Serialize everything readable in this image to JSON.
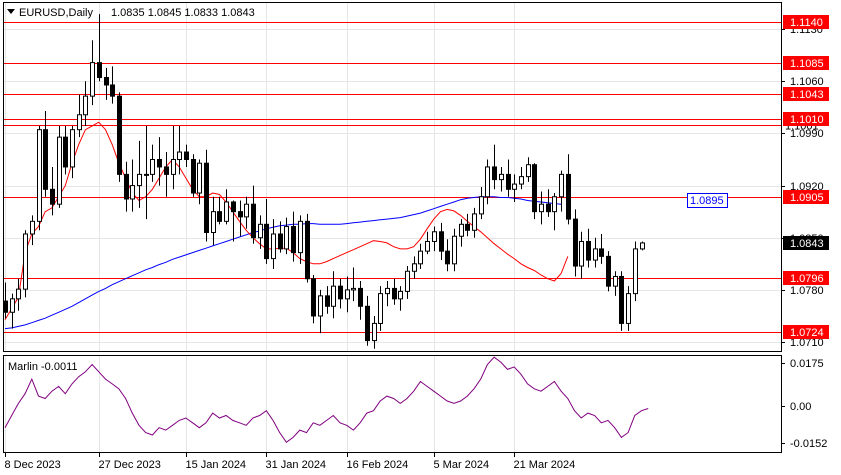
{
  "window": {
    "symbol_label": "EURUSD,Daily",
    "ohlc": "1.0835 1.0845 1.0833 1.0843",
    "current_price": "1.0843",
    "line_price_label": "1.0895"
  },
  "indicator": {
    "label": "Marlin -0.0011",
    "ticks": [
      "0.0175",
      "0.00",
      "-0.0152"
    ]
  },
  "x_axis": {
    "labels": [
      "8 Dec 2023",
      "27 Dec 2023",
      "15 Jan 2024",
      "31 Jan 2024",
      "16 Feb 2024",
      "5 Mar 2024",
      "21 Mar 2024"
    ]
  },
  "y_axis": {
    "ticks": [
      "1.1130",
      "1.1060",
      "1.0990",
      "1.0920",
      "1.0850",
      "1.0780",
      "1.0710"
    ]
  },
  "levels": [
    "1.1140",
    "1.1085",
    "1.1043",
    "1.1010",
    "1.1001",
    "1.0905",
    "1.0796",
    "1.0724"
  ],
  "colors": {
    "level_line": "#ff0000",
    "ma_fast": "#ff0000",
    "ma_slow": "#0000ff",
    "oscillator": "#800080",
    "candle_bull": "#ffffff",
    "candle_bear": "#000000"
  },
  "chart_data": [
    {
      "type": "candlestick",
      "title": "EURUSD,Daily",
      "ylim": [
        1.0698,
        1.1165
      ],
      "y_ticks": [
        1.113,
        1.106,
        1.099,
        1.092,
        1.085,
        1.078,
        1.071
      ],
      "levels": [
        1.114,
        1.1085,
        1.1043,
        1.101,
        1.1001,
        1.0905,
        1.0796,
        1.0724
      ],
      "series": [
        {
          "name": "",
          "kind": "ma_fast",
          "values": [
            1.074,
            1.0755,
            1.077,
            1.083,
            1.0855,
            1.0865,
            1.0885,
            1.089,
            1.0905,
            1.092,
            1.095,
            1.0975,
            1.0995,
            1.1,
            1.1005,
            1.0995,
            1.0975,
            1.095,
            1.093,
            1.091,
            1.09,
            1.0905,
            1.0915,
            1.093,
            1.0945,
            1.0955,
            1.0945,
            1.093,
            1.0915,
            1.0905,
            1.0905,
            1.091,
            1.0908,
            1.0898,
            1.0885,
            1.0872,
            1.086,
            1.085,
            1.0842,
            1.0835,
            1.0835,
            1.0836,
            1.0836,
            1.083,
            1.0822,
            1.0818,
            1.0815,
            1.0815,
            1.0818,
            1.0822,
            1.0826,
            1.083,
            1.0834,
            1.0838,
            1.0842,
            1.0846,
            1.0845,
            1.0843,
            1.0838,
            1.0835,
            1.0835,
            1.0838,
            1.0848,
            1.0862,
            1.0875,
            1.0885,
            1.0888,
            1.0886,
            1.088,
            1.0872,
            1.0865,
            1.0858,
            1.085,
            1.0842,
            1.0835,
            1.0828,
            1.0822,
            1.0815,
            1.081,
            1.0806,
            1.08,
            1.0795,
            1.0792,
            1.0802,
            1.0825
          ]
        },
        {
          "name": "",
          "kind": "ma_slow",
          "values": [
            1.0728,
            1.0729,
            1.0731,
            1.0733,
            1.0736,
            1.0739,
            1.0742,
            1.0746,
            1.075,
            1.0754,
            1.0758,
            1.0763,
            1.0768,
            1.0773,
            1.0778,
            1.0782,
            1.0787,
            1.0791,
            1.0795,
            1.0799,
            1.0803,
            1.0807,
            1.081,
            1.0814,
            1.0817,
            1.0821,
            1.0824,
            1.0827,
            1.083,
            1.0833,
            1.0836,
            1.0839,
            1.0842,
            1.0845,
            1.0848,
            1.0851,
            1.0854,
            1.0857,
            1.0859,
            1.0862,
            1.0864,
            1.0866,
            1.0867,
            1.0868,
            1.0868,
            1.0869,
            1.0869,
            1.0868,
            1.0868,
            1.0868,
            1.0868,
            1.0869,
            1.087,
            1.0871,
            1.0872,
            1.0873,
            1.0874,
            1.0875,
            1.0876,
            1.0877,
            1.0879,
            1.0881,
            1.0883,
            1.0886,
            1.0889,
            1.0892,
            1.0895,
            1.0898,
            1.0901,
            1.0903,
            1.0904,
            1.0905,
            1.0905,
            1.0905,
            1.0904,
            1.0904,
            1.0903,
            1.0902,
            1.09,
            1.0899,
            1.0898,
            1.0897,
            1.0896,
            1.0895
          ]
        },
        {
          "name": "",
          "kind": "ohlc",
          "candles": [
            [
              1.0765,
              1.079,
              1.0742,
              1.075
            ],
            [
              1.075,
              1.0775,
              1.0728,
              1.0768
            ],
            [
              1.0768,
              1.0795,
              1.0752,
              1.0781
            ],
            [
              1.0781,
              1.086,
              1.077,
              1.0855
            ],
            [
              1.0855,
              1.088,
              1.084,
              1.0872
            ],
            [
              1.0872,
              1.1,
              1.086,
              1.0995
            ],
            [
              1.0995,
              1.102,
              1.0905,
              1.0915
            ],
            [
              1.0915,
              1.0945,
              1.088,
              1.0895
            ],
            [
              1.0895,
              1.1,
              1.089,
              1.0985
            ],
            [
              1.0985,
              1.1,
              1.0935,
              1.0945
            ],
            [
              1.0945,
              1.1,
              1.093,
              1.0995
            ],
            [
              1.0995,
              1.1042,
              1.0985,
              1.1015
            ],
            [
              1.1015,
              1.106,
              1.1,
              1.104
            ],
            [
              1.104,
              1.1115,
              1.1028,
              1.1085
            ],
            [
              1.1085,
              1.115,
              1.106,
              1.1065
            ],
            [
              1.1065,
              1.1078,
              1.1035,
              1.1055
            ],
            [
              1.1055,
              1.108,
              1.103,
              1.104
            ],
            [
              1.104,
              1.1045,
              1.0925,
              1.0935
            ],
            [
              1.0935,
              1.0952,
              1.0885,
              1.0902
            ],
            [
              1.0902,
              1.0955,
              1.0885,
              1.092
            ],
            [
              1.092,
              1.098,
              1.089,
              1.0935
            ],
            [
              1.0935,
              1.1,
              1.0875,
              1.0935
            ],
            [
              1.0935,
              1.0975,
              1.0925,
              1.0955
            ],
            [
              1.0955,
              1.0985,
              1.092,
              1.0945
            ],
            [
              1.0945,
              1.0965,
              1.0905,
              1.0935
            ],
            [
              1.0935,
              1.1,
              1.0915,
              1.0955
            ],
            [
              1.0955,
              1.1,
              1.0935,
              1.0965
            ],
            [
              1.0965,
              1.0975,
              1.0945,
              1.0955
            ],
            [
              1.0955,
              1.0962,
              1.0905,
              1.091
            ],
            [
              1.091,
              1.0955,
              1.0895,
              1.095
            ],
            [
              1.095,
              1.0968,
              1.0845,
              1.0857
            ],
            [
              1.0857,
              1.0905,
              1.084,
              1.0885
            ],
            [
              1.0885,
              1.0905,
              1.0868,
              1.0872
            ],
            [
              1.0872,
              1.0915,
              1.0868,
              1.0898
            ],
            [
              1.0898,
              1.09,
              1.0845,
              1.0885
            ],
            [
              1.0885,
              1.09,
              1.0852,
              1.0878
            ],
            [
              1.0878,
              1.0905,
              1.0862,
              1.0895
            ],
            [
              1.0895,
              1.092,
              1.0842,
              1.085
            ],
            [
              1.085,
              1.088,
              1.0835,
              1.0868
            ],
            [
              1.0868,
              1.0902,
              1.0815,
              1.0822
            ],
            [
              1.0822,
              1.0875,
              1.0808,
              1.0855
            ],
            [
              1.0855,
              1.0872,
              1.083,
              1.0835
            ],
            [
              1.0835,
              1.0877,
              1.0828,
              1.0865
            ],
            [
              1.0865,
              1.0885,
              1.0818,
              1.083
            ],
            [
              1.083,
              1.088,
              1.0815,
              1.0872
            ],
            [
              1.0872,
              1.0882,
              1.079,
              1.0795
            ],
            [
              1.0795,
              1.08,
              1.0735,
              1.0745
            ],
            [
              1.0745,
              1.078,
              1.0722,
              1.0772
            ],
            [
              1.0772,
              1.0785,
              1.0748,
              1.0758
            ],
            [
              1.0758,
              1.0805,
              1.0742,
              1.0785
            ],
            [
              1.0785,
              1.0795,
              1.0755,
              1.0768
            ],
            [
              1.0768,
              1.0798,
              1.075,
              1.078
            ],
            [
              1.078,
              1.081,
              1.0765,
              1.0782
            ],
            [
              1.0782,
              1.0792,
              1.074,
              1.0758
            ],
            [
              1.0758,
              1.0772,
              1.0705,
              1.0712
            ],
            [
              1.0712,
              1.0745,
              1.0701,
              1.0735
            ],
            [
              1.0735,
              1.0785,
              1.0725,
              1.0775
            ],
            [
              1.0775,
              1.0792,
              1.0758,
              1.0782
            ],
            [
              1.0782,
              1.0795,
              1.076,
              1.0768
            ],
            [
              1.0768,
              1.0785,
              1.0752,
              1.0778
            ],
            [
              1.0778,
              1.0812,
              1.0768,
              1.0805
            ],
            [
              1.0805,
              1.0825,
              1.0795,
              1.0815
            ],
            [
              1.0815,
              1.0842,
              1.0808,
              1.0832
            ],
            [
              1.0832,
              1.0858,
              1.0828,
              1.0845
            ],
            [
              1.0845,
              1.0865,
              1.0832,
              1.0858
            ],
            [
              1.0858,
              1.087,
              1.082,
              1.0832
            ],
            [
              1.0832,
              1.0848,
              1.0805,
              1.0815
            ],
            [
              1.0815,
              1.0862,
              1.0805,
              1.0852
            ],
            [
              1.0852,
              1.0875,
              1.0838,
              1.0868
            ],
            [
              1.0868,
              1.0882,
              1.0852,
              1.086
            ],
            [
              1.086,
              1.089,
              1.085,
              1.0882
            ],
            [
              1.0882,
              1.0918,
              1.0875,
              1.0905
            ],
            [
              1.0905,
              1.0955,
              1.0895,
              1.0945
            ],
            [
              1.0945,
              1.0975,
              1.0915,
              1.0928
            ],
            [
              1.0928,
              1.0945,
              1.0912,
              1.0935
            ],
            [
              1.0935,
              1.0955,
              1.0905,
              1.0915
            ],
            [
              1.0915,
              1.0935,
              1.0898,
              1.0922
            ],
            [
              1.0922,
              1.0945,
              1.0915,
              1.0932
            ],
            [
              1.0932,
              1.0958,
              1.0925,
              1.0948
            ],
            [
              1.0948,
              1.095,
              1.0875,
              1.0885
            ],
            [
              1.0885,
              1.0912,
              1.0868,
              1.0895
            ],
            [
              1.0895,
              1.0915,
              1.0878,
              1.0885
            ],
            [
              1.0885,
              1.091,
              1.086,
              1.0905
            ],
            [
              1.0905,
              1.094,
              1.0885,
              1.0935
            ],
            [
              1.0935,
              1.0962,
              1.0868,
              1.0875
            ],
            [
              1.0875,
              1.0888,
              1.0798,
              1.0812
            ],
            [
              1.0812,
              1.0858,
              1.0795,
              1.0845
            ],
            [
              1.0845,
              1.0862,
              1.081,
              1.082
            ],
            [
              1.082,
              1.085,
              1.081,
              1.0835
            ],
            [
              1.0835,
              1.0855,
              1.0815,
              1.0825
            ],
            [
              1.0825,
              1.0832,
              1.0778,
              1.0785
            ],
            [
              1.0785,
              1.0805,
              1.0772,
              1.0798
            ],
            [
              1.0798,
              1.0805,
              1.0725,
              1.0735
            ],
            [
              1.0735,
              1.0785,
              1.0725,
              1.0775
            ],
            [
              1.0775,
              1.0845,
              1.0765,
              1.0835
            ],
            [
              1.0835,
              1.0845,
              1.0833,
              1.0843
            ]
          ]
        }
      ]
    },
    {
      "type": "line",
      "title": "Marlin -0.0011",
      "ylim": [
        -0.019,
        0.0205
      ],
      "y_ticks": [
        0.0175,
        0.0,
        -0.0152
      ],
      "series": [
        {
          "name": "Marlin",
          "values": [
            -0.009,
            -0.004,
            0.001,
            0.005,
            0.011,
            0.004,
            0.003,
            0.006,
            0.008,
            0.005,
            0.009,
            0.012,
            0.014,
            0.017,
            0.014,
            0.011,
            0.009,
            0.007,
            0.003,
            -0.003,
            -0.008,
            -0.011,
            -0.012,
            -0.009,
            -0.01,
            -0.008,
            -0.006,
            -0.005,
            -0.007,
            -0.009,
            -0.007,
            -0.003,
            -0.005,
            -0.004,
            -0.006,
            -0.007,
            -0.008,
            -0.005,
            -0.004,
            -0.002,
            -0.006,
            -0.011,
            -0.015,
            -0.013,
            -0.01,
            -0.011,
            -0.007,
            -0.008,
            -0.006,
            -0.004,
            -0.007,
            -0.008,
            -0.01,
            -0.007,
            -0.003,
            -0.002,
            0.002,
            0.004,
            0.003,
            0.001,
            0.003,
            0.006,
            0.01,
            0.008,
            0.006,
            0.004,
            0.002,
            0.001,
            0.002,
            0.004,
            0.007,
            0.011,
            0.017,
            0.02,
            0.018,
            0.015,
            0.016,
            0.013,
            0.009,
            0.007,
            0.006,
            0.008,
            0.01,
            0.006,
            0.003,
            -0.002,
            -0.005,
            -0.003,
            -0.004,
            -0.007,
            -0.006,
            -0.009,
            -0.013,
            -0.011,
            -0.004,
            -0.002,
            -0.0011
          ]
        }
      ]
    }
  ]
}
